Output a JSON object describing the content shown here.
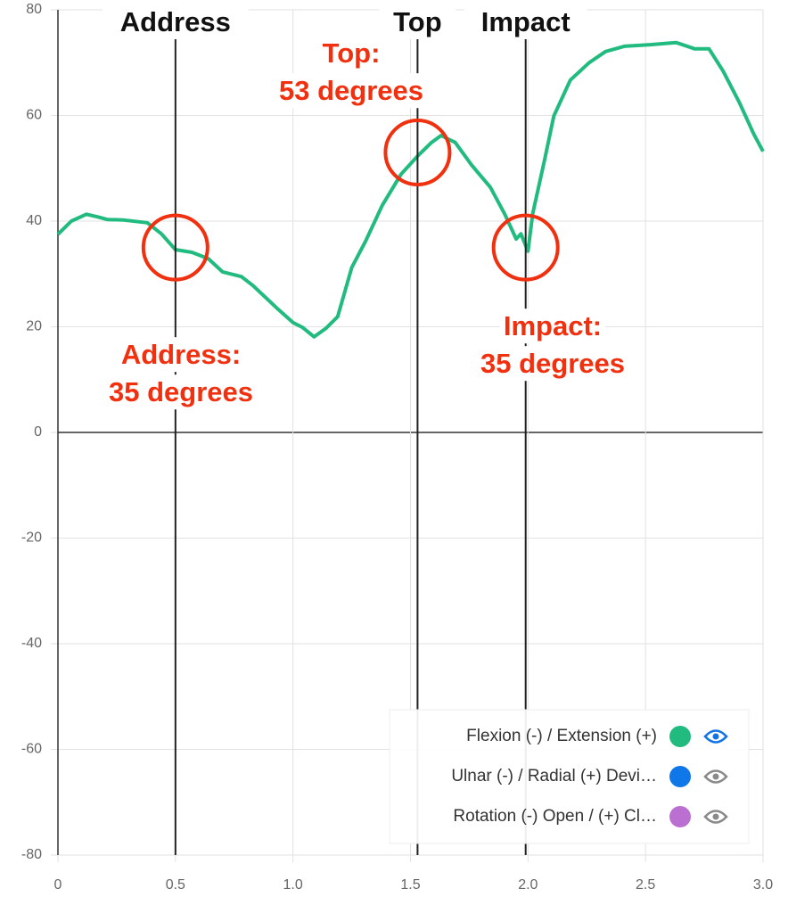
{
  "chart_data": {
    "type": "line",
    "x": [
      0,
      0.057,
      0.121,
      0.17,
      0.21,
      0.28,
      0.38,
      0.44,
      0.5,
      0.57,
      0.64,
      0.7,
      0.78,
      0.83,
      0.93,
      1.0,
      1.04,
      1.09,
      1.14,
      1.19,
      1.25,
      1.31,
      1.38,
      1.46,
      1.53,
      1.59,
      1.63,
      1.69,
      1.76,
      1.84,
      1.9,
      1.95,
      1.97,
      2.0,
      2.02,
      2.07,
      2.11,
      2.18,
      2.26,
      2.33,
      2.41,
      2.52,
      2.63,
      2.71,
      2.77,
      2.83,
      2.9,
      2.96,
      3.0
    ],
    "series": [
      {
        "name": "Flexion (-) / Extension (+)",
        "color": "#22bb7f",
        "visible": true,
        "values": [
          37.5,
          40,
          41.3,
          40.8,
          40.3,
          40.2,
          39.7,
          37.6,
          34.6,
          34.1,
          32.9,
          30.4,
          29.5,
          27.8,
          23.6,
          20.8,
          19.9,
          18.1,
          19.7,
          21.9,
          31.2,
          36.3,
          43.0,
          48.9,
          52.3,
          54.9,
          56.2,
          54.9,
          50.6,
          46.4,
          41.4,
          36.6,
          37.6,
          34.3,
          41.4,
          51.5,
          59.9,
          66.7,
          70.0,
          72.1,
          73.1,
          73.4,
          73.8,
          72.6,
          72.6,
          68.4,
          62.4,
          56.5,
          53.2
        ]
      },
      {
        "name": "Ulnar (-) / Radial (+) Devi…",
        "color": "#0f77e8",
        "visible": false
      },
      {
        "name": "Rotation (-) Open / (+) Cl…",
        "color": "#bb6fd0",
        "visible": false
      }
    ],
    "xlim": [
      0,
      3
    ],
    "ylim": [
      -80,
      80
    ],
    "xticks": [
      0,
      0.5,
      {
        "value": 1,
        "label": "1.0"
      },
      1.5,
      {
        "value": 2,
        "label": "2.0"
      },
      2.5,
      {
        "value": 3,
        "label": "3.0"
      }
    ],
    "yticks": [
      -80,
      -60,
      -40,
      -20,
      0,
      20,
      40,
      60,
      80
    ],
    "grid": true,
    "legend": "bottom-right",
    "markers": [
      {
        "x": 0.5,
        "label": "Address"
      },
      {
        "x": 1.53,
        "label": "Top"
      },
      {
        "x": 1.99,
        "label": "Impact"
      }
    ],
    "annotations": [
      {
        "x": 0.5,
        "y": 35,
        "lines": [
          "Address:",
          "35 degrees"
        ]
      },
      {
        "x": 1.53,
        "y": 53,
        "lines": [
          "Top:",
          "53 degrees"
        ]
      },
      {
        "x": 1.99,
        "y": 35,
        "lines": [
          "Impact:",
          "35 degrees"
        ]
      }
    ]
  }
}
